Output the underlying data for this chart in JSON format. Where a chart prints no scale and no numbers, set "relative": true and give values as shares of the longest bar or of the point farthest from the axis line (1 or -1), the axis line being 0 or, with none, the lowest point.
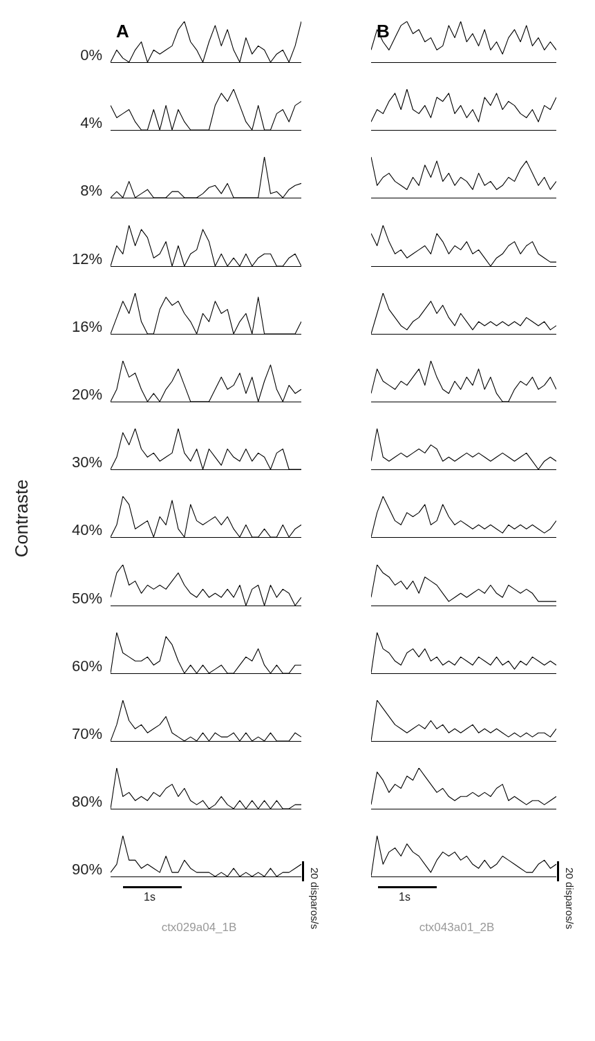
{
  "chart_data": [
    {
      "type": "line",
      "title": "A",
      "ylabel": "0%",
      "relative": true,
      "color": "#000000",
      "annotations": [
        "Contraste"
      ],
      "categories": [
        null,
        null,
        null,
        null,
        null,
        null,
        null,
        null,
        null,
        null,
        null,
        null,
        null,
        null,
        null,
        null,
        null,
        null,
        null,
        null,
        null,
        null,
        null,
        null,
        null,
        null,
        null,
        null,
        null,
        null,
        null,
        null
      ],
      "values": [
        0,
        0.3,
        0.1,
        0,
        0.3,
        0.5,
        0,
        0.3,
        0.2,
        0.3,
        0.4,
        0.8,
        1,
        0.5,
        0.3,
        0,
        0.5,
        0.9,
        0.4,
        0.8,
        0.3,
        0,
        0.6,
        0.2,
        0.4,
        0.3,
        0,
        0.2,
        0.3,
        0,
        0.4,
        1
      ]
    },
    {
      "type": "line",
      "title": "B",
      "relative": true,
      "color": "#000000",
      "categories": [
        null,
        null,
        null,
        null,
        null,
        null,
        null,
        null,
        null,
        null,
        null,
        null,
        null,
        null,
        null,
        null,
        null,
        null,
        null,
        null,
        null,
        null,
        null,
        null,
        null,
        null,
        null,
        null,
        null,
        null,
        null,
        null
      ],
      "values": [
        0.3,
        0.8,
        0.5,
        0.3,
        0.6,
        0.9,
        1,
        0.7,
        0.8,
        0.5,
        0.6,
        0.3,
        0.4,
        0.9,
        0.6,
        1,
        0.5,
        0.7,
        0.4,
        0.8,
        0.3,
        0.5,
        0.2,
        0.6,
        0.8,
        0.5,
        0.9,
        0.4,
        0.6,
        0.3,
        0.5,
        0.3
      ]
    },
    {
      "type": "line",
      "ylabel": "4%",
      "relative": true,
      "color": "#000000",
      "categories": [
        null,
        null,
        null,
        null,
        null,
        null,
        null,
        null,
        null,
        null,
        null,
        null,
        null,
        null,
        null,
        null,
        null,
        null,
        null,
        null,
        null,
        null,
        null,
        null,
        null,
        null,
        null,
        null,
        null,
        null,
        null,
        null
      ],
      "values": [
        0.6,
        0.3,
        0.4,
        0.5,
        0.2,
        0,
        0,
        0.5,
        0,
        0.6,
        0,
        0.5,
        0.2,
        0,
        0,
        0,
        0,
        0.6,
        0.9,
        0.7,
        1,
        0.6,
        0.2,
        0,
        0.6,
        0,
        0,
        0.4,
        0.5,
        0.2,
        0.6,
        0.7
      ]
    },
    {
      "type": "line",
      "relative": true,
      "color": "#000000",
      "categories": [
        null,
        null,
        null,
        null,
        null,
        null,
        null,
        null,
        null,
        null,
        null,
        null,
        null,
        null,
        null,
        null,
        null,
        null,
        null,
        null,
        null,
        null,
        null,
        null,
        null,
        null,
        null,
        null,
        null,
        null,
        null,
        null
      ],
      "values": [
        0.2,
        0.5,
        0.4,
        0.7,
        0.9,
        0.5,
        1,
        0.5,
        0.4,
        0.6,
        0.3,
        0.8,
        0.7,
        0.9,
        0.4,
        0.6,
        0.3,
        0.5,
        0.2,
        0.8,
        0.6,
        0.9,
        0.5,
        0.7,
        0.6,
        0.4,
        0.3,
        0.5,
        0.2,
        0.6,
        0.5,
        0.8
      ]
    },
    {
      "type": "line",
      "ylabel": "8%",
      "relative": true,
      "color": "#000000",
      "categories": [
        null,
        null,
        null,
        null,
        null,
        null,
        null,
        null,
        null,
        null,
        null,
        null,
        null,
        null,
        null,
        null,
        null,
        null,
        null,
        null,
        null,
        null,
        null,
        null,
        null,
        null,
        null,
        null,
        null,
        null,
        null,
        null
      ],
      "values": [
        0,
        0.15,
        0,
        0.4,
        0,
        0.1,
        0.2,
        0,
        0,
        0,
        0.15,
        0.15,
        0,
        0,
        0,
        0.1,
        0.25,
        0.3,
        0.1,
        0.35,
        0,
        0,
        0,
        0,
        0,
        1,
        0.1,
        0.15,
        0,
        0.2,
        0.3,
        0.35
      ]
    },
    {
      "type": "line",
      "relative": true,
      "color": "#000000",
      "categories": [
        null,
        null,
        null,
        null,
        null,
        null,
        null,
        null,
        null,
        null,
        null,
        null,
        null,
        null,
        null,
        null,
        null,
        null,
        null,
        null,
        null,
        null,
        null,
        null,
        null,
        null,
        null,
        null,
        null,
        null,
        null,
        null
      ],
      "values": [
        1,
        0.3,
        0.5,
        0.6,
        0.4,
        0.3,
        0.2,
        0.5,
        0.3,
        0.8,
        0.5,
        0.9,
        0.4,
        0.6,
        0.3,
        0.5,
        0.4,
        0.2,
        0.6,
        0.3,
        0.4,
        0.2,
        0.3,
        0.5,
        0.4,
        0.7,
        0.9,
        0.6,
        0.3,
        0.5,
        0.2,
        0.4
      ]
    },
    {
      "type": "line",
      "ylabel": "12%",
      "relative": true,
      "color": "#000000",
      "categories": [
        null,
        null,
        null,
        null,
        null,
        null,
        null,
        null,
        null,
        null,
        null,
        null,
        null,
        null,
        null,
        null,
        null,
        null,
        null,
        null,
        null,
        null,
        null,
        null,
        null,
        null,
        null,
        null,
        null,
        null,
        null,
        null
      ],
      "values": [
        0,
        0.5,
        0.3,
        1,
        0.5,
        0.9,
        0.7,
        0.2,
        0.3,
        0.6,
        0,
        0.5,
        0,
        0.3,
        0.4,
        0.9,
        0.6,
        0,
        0.3,
        0,
        0.2,
        0,
        0.3,
        0,
        0.2,
        0.3,
        0.3,
        0,
        0,
        0.2,
        0.3,
        0
      ]
    },
    {
      "type": "line",
      "relative": true,
      "color": "#000000",
      "categories": [
        null,
        null,
        null,
        null,
        null,
        null,
        null,
        null,
        null,
        null,
        null,
        null,
        null,
        null,
        null,
        null,
        null,
        null,
        null,
        null,
        null,
        null,
        null,
        null,
        null,
        null,
        null,
        null,
        null,
        null,
        null,
        null
      ],
      "values": [
        0.8,
        0.5,
        1,
        0.6,
        0.3,
        0.4,
        0.2,
        0.3,
        0.4,
        0.5,
        0.3,
        0.8,
        0.6,
        0.3,
        0.5,
        0.4,
        0.6,
        0.3,
        0.4,
        0.2,
        0,
        0.2,
        0.3,
        0.5,
        0.6,
        0.3,
        0.5,
        0.6,
        0.3,
        0.2,
        0.1,
        0.1
      ]
    },
    {
      "type": "line",
      "ylabel": "16%",
      "relative": true,
      "color": "#000000",
      "categories": [
        null,
        null,
        null,
        null,
        null,
        null,
        null,
        null,
        null,
        null,
        null,
        null,
        null,
        null,
        null,
        null,
        null,
        null,
        null,
        null,
        null,
        null,
        null,
        null,
        null,
        null,
        null,
        null,
        null,
        null,
        null,
        null
      ],
      "values": [
        0,
        0.4,
        0.8,
        0.5,
        1,
        0.3,
        0,
        0,
        0.6,
        0.9,
        0.7,
        0.8,
        0.5,
        0.3,
        0,
        0.5,
        0.3,
        0.8,
        0.5,
        0.6,
        0,
        0.3,
        0.5,
        0,
        0.9,
        0,
        0,
        0,
        0,
        0,
        0,
        0.3
      ]
    },
    {
      "type": "line",
      "relative": true,
      "color": "#000000",
      "categories": [
        null,
        null,
        null,
        null,
        null,
        null,
        null,
        null,
        null,
        null,
        null,
        null,
        null,
        null,
        null,
        null,
        null,
        null,
        null,
        null,
        null,
        null,
        null,
        null,
        null,
        null,
        null,
        null,
        null,
        null,
        null,
        null
      ],
      "values": [
        0,
        0.5,
        1,
        0.6,
        0.4,
        0.2,
        0.1,
        0.3,
        0.4,
        0.6,
        0.8,
        0.5,
        0.7,
        0.4,
        0.2,
        0.5,
        0.3,
        0.1,
        0.3,
        0.2,
        0.3,
        0.2,
        0.3,
        0.2,
        0.3,
        0.2,
        0.4,
        0.3,
        0.2,
        0.3,
        0.1,
        0.2
      ]
    },
    {
      "type": "line",
      "ylabel": "20%",
      "relative": true,
      "color": "#000000",
      "categories": [
        null,
        null,
        null,
        null,
        null,
        null,
        null,
        null,
        null,
        null,
        null,
        null,
        null,
        null,
        null,
        null,
        null,
        null,
        null,
        null,
        null,
        null,
        null,
        null,
        null,
        null,
        null,
        null,
        null,
        null,
        null,
        null
      ],
      "values": [
        0,
        0.3,
        1,
        0.6,
        0.7,
        0.3,
        0,
        0.2,
        0,
        0.3,
        0.5,
        0.8,
        0.4,
        0,
        0,
        0,
        0,
        0.3,
        0.6,
        0.3,
        0.4,
        0.7,
        0.2,
        0.6,
        0,
        0.5,
        0.9,
        0.3,
        0,
        0.4,
        0.2,
        0.3
      ]
    },
    {
      "type": "line",
      "relative": true,
      "color": "#000000",
      "categories": [
        null,
        null,
        null,
        null,
        null,
        null,
        null,
        null,
        null,
        null,
        null,
        null,
        null,
        null,
        null,
        null,
        null,
        null,
        null,
        null,
        null,
        null,
        null,
        null,
        null,
        null,
        null,
        null,
        null,
        null,
        null,
        null
      ],
      "values": [
        0.2,
        0.8,
        0.5,
        0.4,
        0.3,
        0.5,
        0.4,
        0.6,
        0.8,
        0.4,
        1,
        0.6,
        0.3,
        0.2,
        0.5,
        0.3,
        0.6,
        0.4,
        0.8,
        0.3,
        0.6,
        0.2,
        0,
        0,
        0.3,
        0.5,
        0.4,
        0.6,
        0.3,
        0.4,
        0.6,
        0.3
      ]
    },
    {
      "type": "line",
      "ylabel": "30%",
      "relative": true,
      "color": "#000000",
      "categories": [
        null,
        null,
        null,
        null,
        null,
        null,
        null,
        null,
        null,
        null,
        null,
        null,
        null,
        null,
        null,
        null,
        null,
        null,
        null,
        null,
        null,
        null,
        null,
        null,
        null,
        null,
        null,
        null,
        null,
        null,
        null,
        null
      ],
      "values": [
        0,
        0.3,
        0.9,
        0.6,
        1,
        0.5,
        0.3,
        0.4,
        0.2,
        0.3,
        0.4,
        1,
        0.4,
        0.2,
        0.5,
        0,
        0.5,
        0.3,
        0.1,
        0.5,
        0.3,
        0.2,
        0.5,
        0.2,
        0.4,
        0.3,
        0,
        0.4,
        0.5,
        0,
        0,
        0
      ]
    },
    {
      "type": "line",
      "relative": true,
      "color": "#000000",
      "categories": [
        null,
        null,
        null,
        null,
        null,
        null,
        null,
        null,
        null,
        null,
        null,
        null,
        null,
        null,
        null,
        null,
        null,
        null,
        null,
        null,
        null,
        null,
        null,
        null,
        null,
        null,
        null,
        null,
        null,
        null,
        null,
        null
      ],
      "values": [
        0.2,
        1,
        0.3,
        0.2,
        0.3,
        0.4,
        0.3,
        0.4,
        0.5,
        0.4,
        0.6,
        0.5,
        0.2,
        0.3,
        0.2,
        0.3,
        0.4,
        0.3,
        0.4,
        0.3,
        0.2,
        0.3,
        0.4,
        0.3,
        0.2,
        0.3,
        0.4,
        0.2,
        0,
        0.2,
        0.3,
        0.2
      ]
    },
    {
      "type": "line",
      "ylabel": "40%",
      "relative": true,
      "color": "#000000",
      "categories": [
        null,
        null,
        null,
        null,
        null,
        null,
        null,
        null,
        null,
        null,
        null,
        null,
        null,
        null,
        null,
        null,
        null,
        null,
        null,
        null,
        null,
        null,
        null,
        null,
        null,
        null,
        null,
        null,
        null,
        null,
        null,
        null
      ],
      "values": [
        0,
        0.3,
        1,
        0.8,
        0.2,
        0.3,
        0.4,
        0,
        0.5,
        0.3,
        0.9,
        0.2,
        0,
        0.8,
        0.4,
        0.3,
        0.4,
        0.5,
        0.3,
        0.5,
        0.2,
        0,
        0.3,
        0,
        0,
        0.2,
        0,
        0,
        0.3,
        0,
        0.2,
        0.3
      ]
    },
    {
      "type": "line",
      "relative": true,
      "color": "#000000",
      "categories": [
        null,
        null,
        null,
        null,
        null,
        null,
        null,
        null,
        null,
        null,
        null,
        null,
        null,
        null,
        null,
        null,
        null,
        null,
        null,
        null,
        null,
        null,
        null,
        null,
        null,
        null,
        null,
        null,
        null,
        null,
        null,
        null
      ],
      "values": [
        0,
        0.6,
        1,
        0.7,
        0.4,
        0.3,
        0.6,
        0.5,
        0.6,
        0.8,
        0.3,
        0.4,
        0.8,
        0.5,
        0.3,
        0.4,
        0.3,
        0.2,
        0.3,
        0.2,
        0.3,
        0.2,
        0.1,
        0.3,
        0.2,
        0.3,
        0.2,
        0.3,
        0.2,
        0.1,
        0.2,
        0.4
      ]
    },
    {
      "type": "line",
      "ylabel": "50%",
      "relative": true,
      "color": "#000000",
      "categories": [
        null,
        null,
        null,
        null,
        null,
        null,
        null,
        null,
        null,
        null,
        null,
        null,
        null,
        null,
        null,
        null,
        null,
        null,
        null,
        null,
        null,
        null,
        null,
        null,
        null,
        null,
        null,
        null,
        null,
        null,
        null,
        null
      ],
      "values": [
        0.2,
        0.8,
        1,
        0.5,
        0.6,
        0.3,
        0.5,
        0.4,
        0.5,
        0.4,
        0.6,
        0.8,
        0.5,
        0.3,
        0.2,
        0.4,
        0.2,
        0.3,
        0.2,
        0.4,
        0.2,
        0.5,
        0,
        0.4,
        0.5,
        0,
        0.5,
        0.2,
        0.4,
        0.3,
        0,
        0.2
      ]
    },
    {
      "type": "line",
      "relative": true,
      "color": "#000000",
      "categories": [
        null,
        null,
        null,
        null,
        null,
        null,
        null,
        null,
        null,
        null,
        null,
        null,
        null,
        null,
        null,
        null,
        null,
        null,
        null,
        null,
        null,
        null,
        null,
        null,
        null,
        null,
        null,
        null,
        null,
        null,
        null,
        null
      ],
      "values": [
        0.2,
        1,
        0.8,
        0.7,
        0.5,
        0.6,
        0.4,
        0.6,
        0.3,
        0.7,
        0.6,
        0.5,
        0.3,
        0.1,
        0.2,
        0.3,
        0.2,
        0.3,
        0.4,
        0.3,
        0.5,
        0.3,
        0.2,
        0.5,
        0.4,
        0.3,
        0.4,
        0.3,
        0.1,
        0.1,
        0.1,
        0.1
      ]
    },
    {
      "type": "line",
      "ylabel": "60%",
      "relative": true,
      "color": "#000000",
      "categories": [
        null,
        null,
        null,
        null,
        null,
        null,
        null,
        null,
        null,
        null,
        null,
        null,
        null,
        null,
        null,
        null,
        null,
        null,
        null,
        null,
        null,
        null,
        null,
        null,
        null,
        null,
        null,
        null,
        null,
        null,
        null,
        null
      ],
      "values": [
        0,
        1,
        0.5,
        0.4,
        0.3,
        0.3,
        0.4,
        0.2,
        0.3,
        0.9,
        0.7,
        0.3,
        0,
        0.2,
        0,
        0.2,
        0,
        0.1,
        0.2,
        0,
        0,
        0.2,
        0.4,
        0.3,
        0.6,
        0.2,
        0,
        0.2,
        0,
        0,
        0.2,
        0.2
      ]
    },
    {
      "type": "line",
      "relative": true,
      "color": "#000000",
      "categories": [
        null,
        null,
        null,
        null,
        null,
        null,
        null,
        null,
        null,
        null,
        null,
        null,
        null,
        null,
        null,
        null,
        null,
        null,
        null,
        null,
        null,
        null,
        null,
        null,
        null,
        null,
        null,
        null,
        null,
        null,
        null,
        null
      ],
      "values": [
        0,
        1,
        0.6,
        0.5,
        0.3,
        0.2,
        0.5,
        0.6,
        0.4,
        0.6,
        0.3,
        0.4,
        0.2,
        0.3,
        0.2,
        0.4,
        0.3,
        0.2,
        0.4,
        0.3,
        0.2,
        0.4,
        0.2,
        0.3,
        0.1,
        0.3,
        0.2,
        0.4,
        0.3,
        0.2,
        0.3,
        0.2
      ]
    },
    {
      "type": "line",
      "ylabel": "70%",
      "relative": true,
      "color": "#000000",
      "categories": [
        null,
        null,
        null,
        null,
        null,
        null,
        null,
        null,
        null,
        null,
        null,
        null,
        null,
        null,
        null,
        null,
        null,
        null,
        null,
        null,
        null,
        null,
        null,
        null,
        null,
        null,
        null,
        null,
        null,
        null,
        null,
        null
      ],
      "values": [
        0,
        0.4,
        1,
        0.5,
        0.3,
        0.4,
        0.2,
        0.3,
        0.4,
        0.6,
        0.2,
        0.1,
        0,
        0.1,
        0,
        0.2,
        0,
        0.2,
        0.1,
        0.1,
        0.2,
        0,
        0.2,
        0,
        0.1,
        0,
        0.2,
        0,
        0,
        0,
        0.2,
        0.1
      ]
    },
    {
      "type": "line",
      "relative": true,
      "color": "#000000",
      "categories": [
        null,
        null,
        null,
        null,
        null,
        null,
        null,
        null,
        null,
        null,
        null,
        null,
        null,
        null,
        null,
        null,
        null,
        null,
        null,
        null,
        null,
        null,
        null,
        null,
        null,
        null,
        null,
        null,
        null,
        null,
        null,
        null
      ],
      "values": [
        0,
        1,
        0.8,
        0.6,
        0.4,
        0.3,
        0.2,
        0.3,
        0.4,
        0.3,
        0.5,
        0.3,
        0.4,
        0.2,
        0.3,
        0.2,
        0.3,
        0.4,
        0.2,
        0.3,
        0.2,
        0.3,
        0.2,
        0.1,
        0.2,
        0.1,
        0.2,
        0.1,
        0.2,
        0.2,
        0.1,
        0.3
      ]
    },
    {
      "type": "line",
      "ylabel": "80%",
      "relative": true,
      "color": "#000000",
      "categories": [
        null,
        null,
        null,
        null,
        null,
        null,
        null,
        null,
        null,
        null,
        null,
        null,
        null,
        null,
        null,
        null,
        null,
        null,
        null,
        null,
        null,
        null,
        null,
        null,
        null,
        null,
        null,
        null,
        null,
        null,
        null,
        null
      ],
      "values": [
        0,
        1,
        0.3,
        0.4,
        0.2,
        0.3,
        0.2,
        0.4,
        0.3,
        0.5,
        0.6,
        0.3,
        0.5,
        0.2,
        0.1,
        0.2,
        0,
        0.1,
        0.3,
        0.1,
        0,
        0.2,
        0,
        0.2,
        0,
        0.2,
        0,
        0.2,
        0,
        0,
        0.1,
        0.1
      ]
    },
    {
      "type": "line",
      "relative": true,
      "color": "#000000",
      "categories": [
        null,
        null,
        null,
        null,
        null,
        null,
        null,
        null,
        null,
        null,
        null,
        null,
        null,
        null,
        null,
        null,
        null,
        null,
        null,
        null,
        null,
        null,
        null,
        null,
        null,
        null,
        null,
        null,
        null,
        null,
        null,
        null
      ],
      "values": [
        0.1,
        0.9,
        0.7,
        0.4,
        0.6,
        0.5,
        0.8,
        0.7,
        1,
        0.8,
        0.6,
        0.4,
        0.5,
        0.3,
        0.2,
        0.3,
        0.3,
        0.4,
        0.3,
        0.4,
        0.3,
        0.5,
        0.6,
        0.2,
        0.3,
        0.2,
        0.1,
        0.2,
        0.2,
        0.1,
        0.2,
        0.3
      ]
    },
    {
      "type": "line",
      "ylabel": "90%",
      "relative": true,
      "color": "#000000",
      "annotations": [
        "1s",
        "20 disparos/s",
        "ctx029a04_1B"
      ],
      "categories": [
        null,
        null,
        null,
        null,
        null,
        null,
        null,
        null,
        null,
        null,
        null,
        null,
        null,
        null,
        null,
        null,
        null,
        null,
        null,
        null,
        null,
        null,
        null,
        null,
        null,
        null,
        null,
        null,
        null,
        null,
        null,
        null
      ],
      "values": [
        0.1,
        0.3,
        1,
        0.4,
        0.4,
        0.2,
        0.3,
        0.2,
        0.1,
        0.5,
        0.1,
        0.1,
        0.4,
        0.2,
        0.1,
        0.1,
        0.1,
        0,
        0.1,
        0,
        0.2,
        0,
        0.1,
        0,
        0.1,
        0,
        0.2,
        0,
        0.1,
        0.1,
        0.2,
        0.3
      ]
    },
    {
      "type": "line",
      "relative": true,
      "color": "#000000",
      "annotations": [
        "1s",
        "20 disparos/s",
        "ctx043a01_2B"
      ],
      "categories": [
        null,
        null,
        null,
        null,
        null,
        null,
        null,
        null,
        null,
        null,
        null,
        null,
        null,
        null,
        null,
        null,
        null,
        null,
        null,
        null,
        null,
        null,
        null,
        null,
        null,
        null,
        null,
        null,
        null,
        null,
        null,
        null
      ],
      "values": [
        0,
        1,
        0.3,
        0.6,
        0.7,
        0.5,
        0.8,
        0.6,
        0.5,
        0.3,
        0.1,
        0.4,
        0.6,
        0.5,
        0.6,
        0.4,
        0.5,
        0.3,
        0.2,
        0.4,
        0.2,
        0.3,
        0.5,
        0.4,
        0.3,
        0.2,
        0.1,
        0.1,
        0.3,
        0.4,
        0.2,
        0.3
      ]
    }
  ]
}
